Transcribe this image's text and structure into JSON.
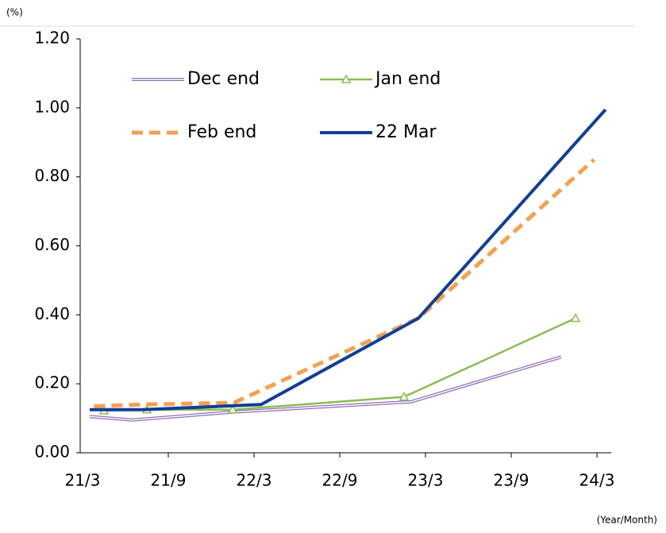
{
  "chart_data": {
    "type": "line",
    "y_unit": "(%)",
    "x_unit": "(Year/Month)",
    "xlim": [
      0,
      37
    ],
    "xticks": [
      {
        "value": 0,
        "label": "21/3"
      },
      {
        "value": 6,
        "label": "21/9"
      },
      {
        "value": 12,
        "label": "22/3"
      },
      {
        "value": 18,
        "label": "22/9"
      },
      {
        "value": 24,
        "label": "23/3"
      },
      {
        "value": 30,
        "label": "23/9"
      },
      {
        "value": 36,
        "label": "24/3"
      }
    ],
    "ylim": [
      0,
      1.2
    ],
    "yticks": [
      {
        "value": 0,
        "label": "0.00"
      },
      {
        "value": 0.2,
        "label": "0.20"
      },
      {
        "value": 0.4,
        "label": "0.40"
      },
      {
        "value": 0.6,
        "label": "0.60"
      },
      {
        "value": 0.8,
        "label": "0.80"
      },
      {
        "value": 1.0,
        "label": "1.00"
      },
      {
        "value": 1.2,
        "label": "1.20"
      }
    ],
    "series": [
      {
        "name": "Dec end",
        "color": "#8e6fb5",
        "style": "double",
        "x": [
          0.5,
          3.5,
          10.5,
          23,
          33.5
        ],
        "values": [
          0.105,
          0.095,
          0.118,
          0.148,
          0.278
        ]
      },
      {
        "name": "Jan end",
        "color": "#8cbd54",
        "style": "triangle",
        "x": [
          1.5,
          4.5,
          10.5,
          22.5,
          34.5
        ],
        "values": [
          0.122,
          0.125,
          0.125,
          0.162,
          0.39
        ]
      },
      {
        "name": "Feb end",
        "color": "#f5a04e",
        "style": "dashed",
        "x": [
          0.8,
          4.2,
          10.6,
          23.5,
          35.8
        ],
        "values": [
          0.135,
          0.14,
          0.145,
          0.39,
          0.85
        ]
      },
      {
        "name": "22 Mar",
        "color": "#113f96",
        "style": "solid",
        "x": [
          0.5,
          4.2,
          12.5,
          23.5,
          36.6
        ],
        "values": [
          0.125,
          0.125,
          0.14,
          0.39,
          0.995
        ]
      }
    ]
  }
}
